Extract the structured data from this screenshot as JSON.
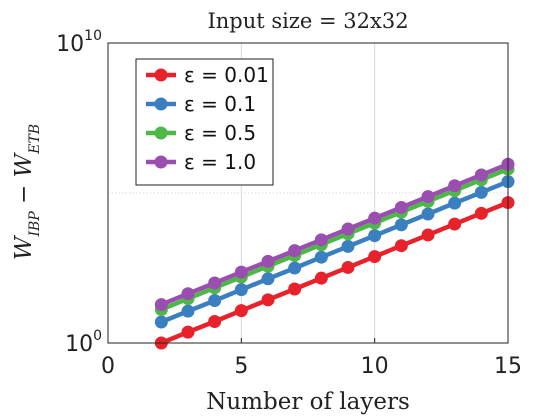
{
  "chart_data": {
    "type": "line",
    "title": "Input size = 32x32",
    "xlabel": "Number of layers",
    "ylabel": "W_IBP − W_ETB",
    "xlim": [
      0,
      15
    ],
    "ylim": [
      1,
      10000000000
    ],
    "yscale": "log",
    "xticks": [
      0,
      5,
      10,
      15
    ],
    "xtick_labels": [
      "0",
      "5",
      "10",
      "15"
    ],
    "yticks": [
      1,
      10000000000
    ],
    "ytick_labels": [
      {
        "base": "10",
        "exp": "0"
      },
      {
        "base": "10",
        "exp": "10"
      }
    ],
    "grid": true,
    "legend_position": "top-left",
    "x": [
      2,
      3,
      4,
      5,
      6,
      7,
      8,
      9,
      10,
      11,
      12,
      13,
      14,
      15
    ],
    "series": [
      {
        "name": "ε = 0.01",
        "color": "#e8222b",
        "values": [
          1.0,
          2.3,
          5.2,
          12.0,
          27.5,
          63,
          145,
          330,
          760,
          1750,
          4000,
          9200,
          21000,
          48000
        ]
      },
      {
        "name": "ε = 0.1",
        "color": "#3a80c0",
        "values": [
          5.0,
          11.5,
          26,
          60,
          138,
          315,
          725,
          1660,
          3800,
          8700,
          20000,
          46000,
          105000,
          240000
        ]
      },
      {
        "name": "ε = 0.5",
        "color": "#4db848",
        "values": [
          13,
          30,
          69,
          158,
          363,
          830,
          1900,
          4370,
          10000,
          23000,
          52500,
          120000,
          275000,
          630000
        ]
      },
      {
        "name": "ε = 1.0",
        "color": "#9a4fb0",
        "values": [
          19,
          44,
          100,
          230,
          525,
          1200,
          2750,
          6300,
          14500,
          33000,
          76000,
          174000,
          400000,
          910000
        ]
      }
    ]
  }
}
